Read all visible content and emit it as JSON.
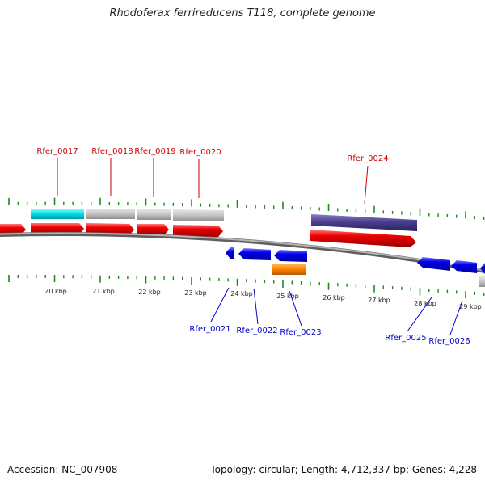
{
  "header": {
    "title": "Rhodoferax ferrireducens T118, complete genome"
  },
  "footer": {
    "accession": "Accession: NC_007908",
    "summary": "Topology: circular; Length: 4,712,337 bp; Genes: 4,228"
  },
  "colors": {
    "backbone": "#8a8a8a",
    "tick": "#1f8a1f",
    "forward_label": "#cc0000",
    "reverse_label": "#0000cc",
    "cds": "#ee0000",
    "blue_cds": "#0000ee",
    "rna": "#ff8800",
    "gray_feature": "#c4c4c4",
    "cyan_feature": "#00e5ee",
    "purple_feature": "#4b3f8e"
  },
  "scale_labels": [
    "20 kbp",
    "21 kbp",
    "22 kbp",
    "23 kbp",
    "24 kbp",
    "25 kbp",
    "26 kbp",
    "27 kbp",
    "28 kbp",
    "29 kbp"
  ],
  "forward_gene_labels": [
    "Rfer_0017",
    "Rfer_0018",
    "Rfer_0019",
    "Rfer_0020",
    "Rfer_0024"
  ],
  "reverse_gene_labels": [
    "Rfer_0021",
    "Rfer_0022",
    "Rfer_0023",
    "Rfer_0025",
    "Rfer_0026"
  ]
}
